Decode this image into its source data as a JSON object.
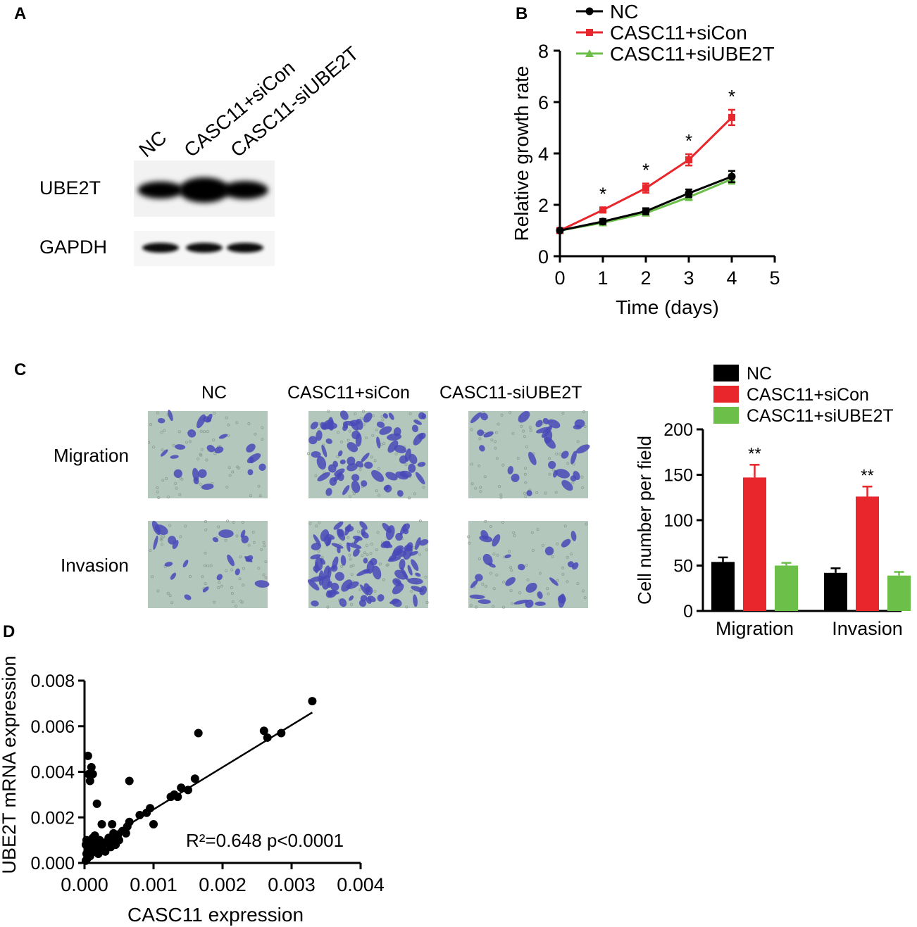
{
  "panels": {
    "a": "A",
    "b": "B",
    "c": "C",
    "d": "D"
  },
  "western": {
    "lanes": [
      "NC",
      "CASC11+siCon",
      "CASC11-siUBE2T"
    ],
    "rows": [
      "UBE2T",
      "GAPDH"
    ],
    "band_strength": {
      "UBE2T": [
        0.55,
        1.0,
        0.6
      ],
      "GAPDH": [
        0.5,
        0.5,
        0.5
      ]
    }
  },
  "micro": {
    "columns": [
      "NC",
      "CASC11+siCon",
      "CASC11-siUBE2T"
    ],
    "rows": [
      "Migration",
      "Invasion"
    ],
    "stain_color": "#4a49b8",
    "background_color": "#b4c7bd"
  },
  "colors": {
    "nc": "#000000",
    "sicon": "#e8262b",
    "siube2t": "#6cc04a"
  },
  "chart_data": [
    {
      "type": "line",
      "xlabel": "Time (days)",
      "ylabel": "Relative growth rate",
      "xlim": [
        0,
        5
      ],
      "ylim": [
        0,
        8
      ],
      "xticks": [
        0,
        1,
        2,
        3,
        4,
        5
      ],
      "yticks": [
        0,
        2,
        4,
        6,
        8
      ],
      "x": [
        0,
        1,
        2,
        3,
        4
      ],
      "series": [
        {
          "name": "NC",
          "values": [
            1.0,
            1.35,
            1.75,
            2.45,
            3.1
          ],
          "errors": [
            0.05,
            0.1,
            0.12,
            0.15,
            0.22
          ],
          "marker": "circle",
          "color": "#000000"
        },
        {
          "name": "CASC11+siCon",
          "values": [
            1.0,
            1.8,
            2.65,
            3.75,
            5.4
          ],
          "errors": [
            0.05,
            0.1,
            0.18,
            0.22,
            0.3
          ],
          "marker": "square",
          "color": "#e8262b"
        },
        {
          "name": "CASC11+siUBE2T",
          "values": [
            1.0,
            1.3,
            1.68,
            2.3,
            3.0
          ],
          "errors": [
            0.05,
            0.08,
            0.1,
            0.12,
            0.18
          ],
          "marker": "triangle",
          "color": "#6cc04a"
        }
      ],
      "annotations": [
        {
          "x": 1,
          "label": "*"
        },
        {
          "x": 2,
          "label": "*"
        },
        {
          "x": 3,
          "label": "*"
        },
        {
          "x": 4,
          "label": "*"
        }
      ],
      "legend": "top-left"
    },
    {
      "type": "bar",
      "ylabel": "Cell number per field",
      "ylim": [
        0,
        200
      ],
      "yticks": [
        0,
        50,
        100,
        150,
        200
      ],
      "categories": [
        "Migration",
        "Invasion"
      ],
      "series": [
        {
          "name": "NC",
          "values": [
            54,
            42
          ],
          "errors": [
            5,
            5
          ],
          "color": "#000000"
        },
        {
          "name": "CASC11+siCon",
          "values": [
            147,
            126
          ],
          "errors": [
            14,
            11
          ],
          "color": "#e8262b"
        },
        {
          "name": "CASC11+siUBE2T",
          "values": [
            50,
            39
          ],
          "errors": [
            3,
            4
          ],
          "color": "#6cc04a"
        }
      ],
      "annotations": [
        {
          "category": "Migration",
          "label": "**"
        },
        {
          "category": "Invasion",
          "label": "**"
        }
      ],
      "legend": "top"
    },
    {
      "type": "scatter",
      "xlabel": "CASC11 expression",
      "ylabel": "UBE2T mRNA expression",
      "xlim": [
        0,
        0.004
      ],
      "ylim": [
        0,
        0.008
      ],
      "xticks": [
        "0.000",
        "0.001",
        "0.002",
        "0.003",
        "0.004"
      ],
      "yticks": [
        "0.000",
        "0.002",
        "0.004",
        "0.006",
        "0.008"
      ],
      "points": [
        [
          5e-05,
          0.0047
        ],
        [
          6e-05,
          0.0039
        ],
        [
          8e-05,
          0.0036
        ],
        [
          0.0001,
          0.0042
        ],
        [
          0.00012,
          0.0039
        ],
        [
          0.00018,
          0.0026
        ],
        [
          0.0004,
          0.0017
        ],
        [
          0.00065,
          0.0036
        ],
        [
          2e-05,
          0.0008
        ],
        [
          3e-05,
          0.0004
        ],
        [
          4e-05,
          0.0002
        ],
        [
          5e-05,
          0.0009
        ],
        [
          6e-05,
          0.0006
        ],
        [
          8e-05,
          0.0003
        ],
        [
          0.0001,
          0.0008
        ],
        [
          0.00012,
          0.0011
        ],
        [
          0.00014,
          0.0005
        ],
        [
          0.00016,
          0.0009
        ],
        [
          0.00018,
          0.0007
        ],
        [
          0.0002,
          0.0004
        ],
        [
          0.00022,
          0.001
        ],
        [
          0.00025,
          0.0006
        ],
        [
          0.00027,
          0.0008
        ],
        [
          0.0003,
          0.0005
        ],
        [
          0.00032,
          0.0009
        ],
        [
          0.00035,
          0.0011
        ],
        [
          0.00038,
          0.0007
        ],
        [
          0.0004,
          0.001
        ],
        [
          0.00042,
          0.0013
        ],
        [
          0.00045,
          0.0008
        ],
        [
          0.00048,
          0.0012
        ],
        [
          0.0005,
          0.001
        ],
        [
          0.00055,
          0.0014
        ],
        [
          0.0006,
          0.0013
        ],
        [
          0.00062,
          0.0016
        ],
        [
          0.00065,
          0.0018
        ],
        [
          0.0008,
          0.0021
        ],
        [
          0.0009,
          0.0022
        ],
        [
          0.00095,
          0.0024
        ],
        [
          0.001,
          0.0017
        ],
        [
          0.00125,
          0.0029
        ],
        [
          0.0013,
          0.003
        ],
        [
          0.00135,
          0.0029
        ],
        [
          0.0014,
          0.0033
        ],
        [
          0.0015,
          0.0032
        ],
        [
          0.0016,
          0.0037
        ],
        [
          0.00165,
          0.0057
        ],
        [
          0.0026,
          0.0058
        ],
        [
          0.00265,
          0.0055
        ],
        [
          0.00285,
          0.0057
        ],
        [
          0.0033,
          0.0071
        ],
        [
          0.00025,
          0.0017
        ],
        [
          3e-05,
          0.001
        ],
        [
          2e-05,
          0.0001
        ],
        [
          0.00015,
          0.0012
        ]
      ],
      "fit_line": {
        "slope": 1.85,
        "intercept": 0.0005,
        "x_range": [
          0,
          0.0033
        ]
      },
      "annotation": "R²=0.648  p<0.0001"
    }
  ]
}
